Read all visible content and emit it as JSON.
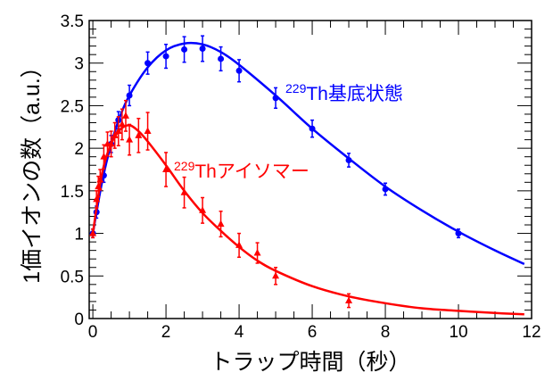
{
  "chart_data": {
    "type": "scatter",
    "xlabel": "トラップ時間（秒）",
    "ylabel": "1価イオンの数（a.u.）",
    "xlim": [
      -0.1,
      12
    ],
    "ylim": [
      0,
      3.5
    ],
    "xticks": [
      0,
      2,
      4,
      6,
      8,
      10,
      12
    ],
    "yticks": [
      0,
      0.5,
      1,
      1.5,
      2,
      2.5,
      3,
      3.5
    ],
    "grid": false,
    "series": [
      {
        "name": "229Th基底状態",
        "label_sup": "229",
        "label_text": "Th基底状態",
        "color": "#0000ff",
        "marker": "circle",
        "x": [
          0,
          0.1,
          0.3,
          0.5,
          0.7,
          1,
          1.5,
          2,
          2.5,
          3,
          3.5,
          4,
          5,
          6,
          7,
          8,
          10
        ],
        "y": [
          1.0,
          1.25,
          1.68,
          2.05,
          2.33,
          2.62,
          3.0,
          3.08,
          3.16,
          3.17,
          3.05,
          2.91,
          2.59,
          2.23,
          1.86,
          1.52,
          1.0
        ],
        "err": [
          0.05,
          0.07,
          0.08,
          0.1,
          0.1,
          0.12,
          0.13,
          0.14,
          0.15,
          0.15,
          0.14,
          0.13,
          0.12,
          0.1,
          0.08,
          0.07,
          0.05
        ],
        "fit_x": [
          0,
          0.25,
          0.5,
          0.75,
          1,
          1.5,
          2,
          2.5,
          3,
          3.5,
          4,
          5,
          6,
          7,
          8,
          9,
          10,
          11,
          11.8
        ],
        "fit_y": [
          1.0,
          1.6,
          2.05,
          2.38,
          2.62,
          2.95,
          3.15,
          3.23,
          3.22,
          3.13,
          2.98,
          2.62,
          2.23,
          1.88,
          1.55,
          1.27,
          1.02,
          0.8,
          0.64
        ]
      },
      {
        "name": "229Thアイソマー",
        "label_sup": "229",
        "label_text": "Thアイソマー",
        "color": "#ff0000",
        "marker": "triangle",
        "x": [
          0,
          0.1,
          0.15,
          0.2,
          0.3,
          0.4,
          0.5,
          0.6,
          0.7,
          0.8,
          0.9,
          1,
          1.25,
          1.5,
          2,
          2.5,
          3,
          3.5,
          4,
          4.5,
          5,
          7
        ],
        "y": [
          1.0,
          1.4,
          1.55,
          1.63,
          1.9,
          2.05,
          2.05,
          2.15,
          2.2,
          2.28,
          2.38,
          2.1,
          2.15,
          2.2,
          1.75,
          1.48,
          1.27,
          1.11,
          0.86,
          0.77,
          0.5,
          0.21
        ],
        "err": [
          0.05,
          0.1,
          0.12,
          0.12,
          0.14,
          0.14,
          0.15,
          0.15,
          0.17,
          0.18,
          0.18,
          0.18,
          0.2,
          0.22,
          0.2,
          0.18,
          0.15,
          0.15,
          0.14,
          0.12,
          0.1,
          0.08
        ],
        "fit_x": [
          0,
          0.25,
          0.5,
          0.75,
          1,
          1.25,
          1.5,
          2,
          2.5,
          3,
          3.5,
          4,
          4.5,
          5,
          6,
          7,
          8,
          9,
          10,
          11,
          11.8
        ],
        "fit_y": [
          1.0,
          1.7,
          2.05,
          2.22,
          2.27,
          2.2,
          2.08,
          1.8,
          1.5,
          1.24,
          1.03,
          0.84,
          0.68,
          0.56,
          0.38,
          0.26,
          0.18,
          0.12,
          0.09,
          0.065,
          0.05
        ]
      }
    ]
  }
}
